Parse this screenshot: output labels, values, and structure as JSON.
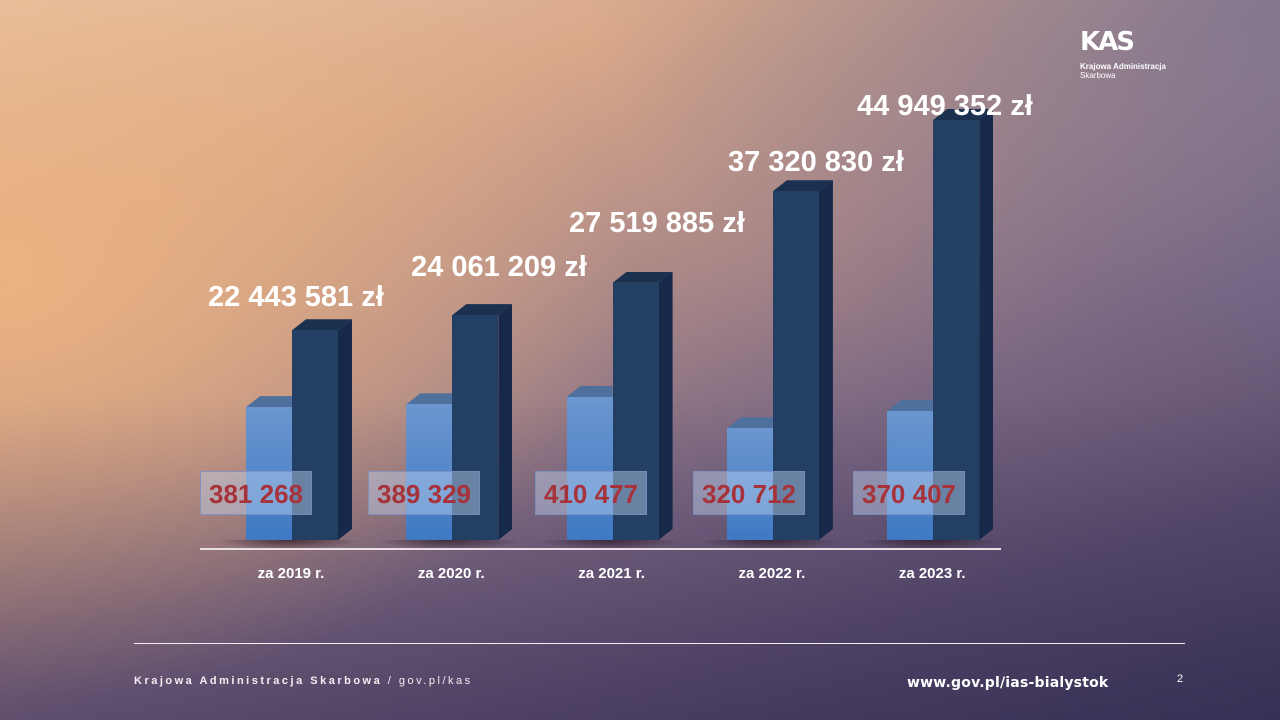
{
  "logo": {
    "mark": "KAS",
    "line1": "Krajowa Administracja",
    "line2": "Skarbowa"
  },
  "chart_data": {
    "type": "bar",
    "title": "",
    "xlabel": "",
    "ylabel": "",
    "grid": false,
    "legend": null,
    "categories": [
      "za 2019 r.",
      "za 2020 r.",
      "za 2021 r.",
      "za 2022 r.",
      "za 2023 r."
    ],
    "series": [
      {
        "name": "count",
        "color": "#4f86cc",
        "values": [
          381268,
          389329,
          410477,
          320712,
          370407
        ],
        "labels": [
          "381 268",
          "389 329",
          "410 477",
          "320 712",
          "370 407"
        ],
        "label_color": "#a6333a"
      },
      {
        "name": "amount_pln",
        "color": "#233f64",
        "values": [
          22443581,
          24061209,
          27519885,
          37320830,
          44949352
        ],
        "labels": [
          "22 443 581 zł",
          "24 061 209 zł",
          "27 519 885 zł",
          "37 320 830 zł",
          "44 949 352 zł"
        ],
        "label_color": "#ffffff"
      }
    ]
  },
  "footer": {
    "org": "Krajowa Administracja Skarbowa",
    "separator": "/",
    "site": "gov.pl/kas",
    "url": "www.gov.pl/ias-bialystok",
    "page": "2"
  }
}
